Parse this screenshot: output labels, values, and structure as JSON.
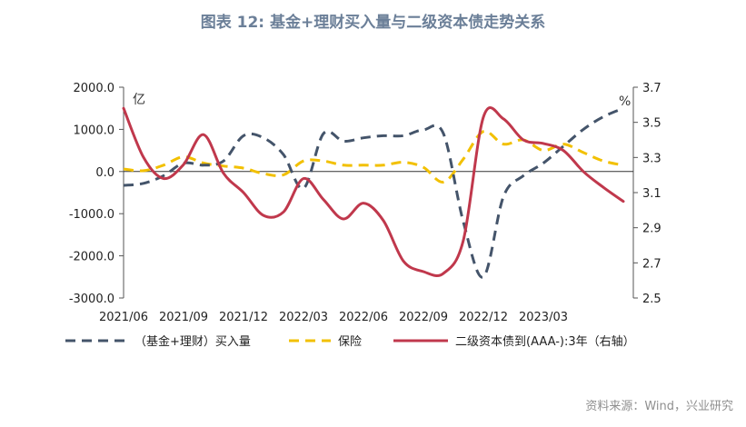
{
  "title": "图表 12: 基金+理财买入量与二级资本债走势关系",
  "source": "资料来源：Wind，兴业研究",
  "chart_data": {
    "type": "line",
    "left_unit": "亿",
    "right_unit": "%",
    "x_ticks": [
      "2021/06",
      "2021/09",
      "2021/12",
      "2022/03",
      "2022/06",
      "2022/09",
      "2022/12",
      "2023/03"
    ],
    "left_axis": {
      "min": -3000,
      "max": 2000,
      "ticks": [
        "2000.0",
        "1000.0",
        "0.0",
        "-1000.0",
        "-2000.0",
        "-3000.0"
      ]
    },
    "right_axis": {
      "min": 2.5,
      "max": 3.7,
      "ticks": [
        "3.7",
        "3.5",
        "3.3",
        "3.1",
        "2.9",
        "2.7",
        "2.5"
      ]
    },
    "x_range": [
      0,
      25.5
    ],
    "series": [
      {
        "name": "（基金+理财）买入量",
        "axis": "left",
        "color": "#44546a",
        "dash": "dash",
        "x": [
          0,
          1,
          2,
          3,
          4,
          5,
          6,
          7,
          8,
          9,
          10,
          11,
          12,
          13,
          14,
          15,
          16,
          17,
          18,
          19,
          20,
          21,
          22,
          23,
          24,
          25
        ],
        "values": [
          -330,
          -280,
          -100,
          200,
          150,
          250,
          850,
          800,
          400,
          -400,
          900,
          720,
          800,
          850,
          850,
          990,
          900,
          -1200,
          -2500,
          -600,
          -100,
          200,
          600,
          1000,
          1300,
          1500
        ]
      },
      {
        "name": "保险",
        "axis": "left",
        "color": "#f2c000",
        "dash": "dash",
        "x": [
          0,
          1,
          2,
          3,
          4,
          5,
          6,
          7,
          8,
          9,
          10,
          11,
          12,
          13,
          14,
          15,
          16,
          17,
          18,
          19,
          20,
          21,
          22,
          23,
          24,
          25
        ],
        "values": [
          60,
          20,
          150,
          350,
          200,
          130,
          80,
          -50,
          -80,
          250,
          250,
          150,
          150,
          150,
          220,
          100,
          -250,
          300,
          950,
          650,
          750,
          500,
          650,
          450,
          250,
          150
        ]
      },
      {
        "name": "二级资本债到(AAA-):3年（右轴）",
        "axis": "right",
        "color": "#c0384c",
        "dash": "solid",
        "x": [
          0,
          1,
          2,
          3,
          4,
          5,
          6,
          7,
          8,
          9,
          10,
          11,
          12,
          13,
          14,
          15,
          16,
          17,
          18,
          19,
          20,
          21,
          22,
          23,
          24,
          25
        ],
        "values": [
          3.58,
          3.3,
          3.18,
          3.26,
          3.43,
          3.21,
          3.1,
          2.97,
          2.99,
          3.18,
          3.06,
          2.95,
          3.04,
          2.94,
          2.71,
          2.65,
          2.64,
          2.83,
          3.53,
          3.52,
          3.4,
          3.38,
          3.34,
          3.22,
          3.13,
          3.05
        ]
      }
    ]
  }
}
